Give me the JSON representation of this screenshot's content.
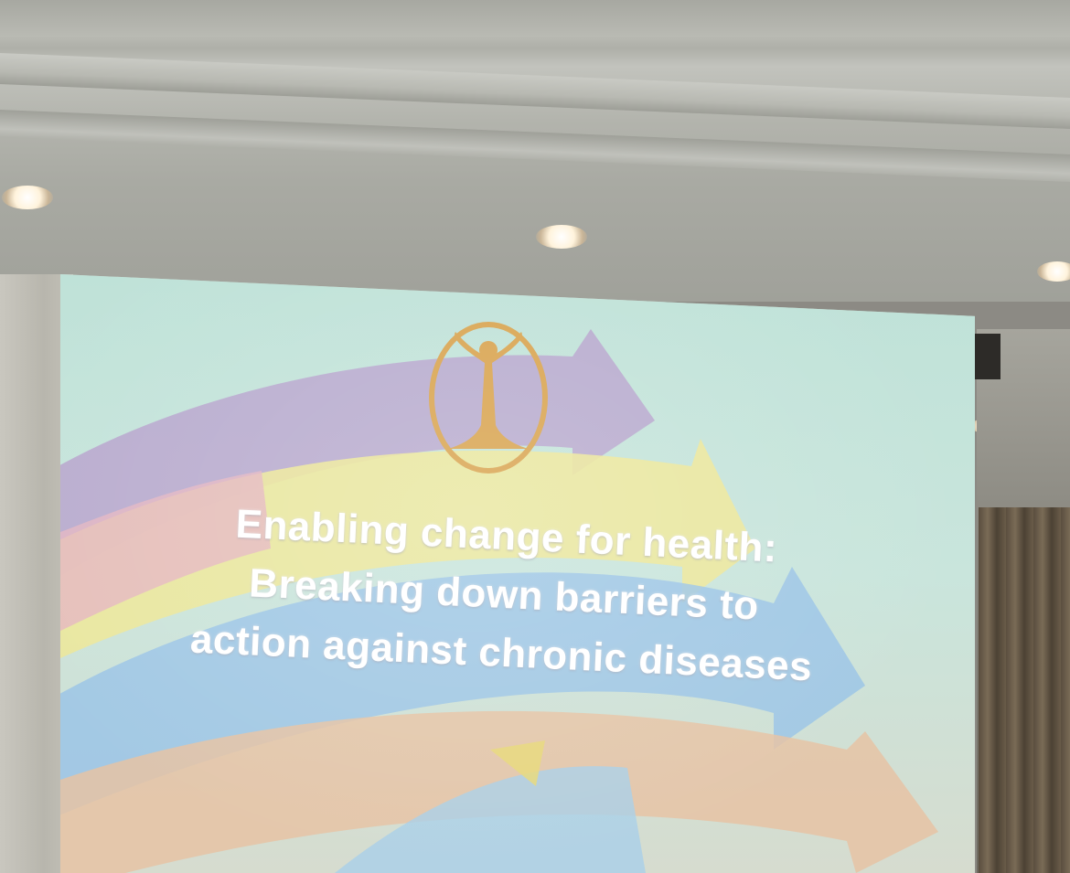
{
  "slide": {
    "title_line_1": "Enabling change for health:",
    "title_line_2": "Breaking down barriers to",
    "title_line_3": "action against chronic diseases",
    "logo": "tree-figure-logo-icon"
  },
  "colors": {
    "logo": "#d9a552",
    "slide_background": "#bfe2d8",
    "arrow_purple": "#b7a3cc",
    "arrow_yellow": "#ece79a",
    "arrow_blue": "#9bc4e6",
    "arrow_peach": "#e6c3a4",
    "text": "#ffffff"
  }
}
